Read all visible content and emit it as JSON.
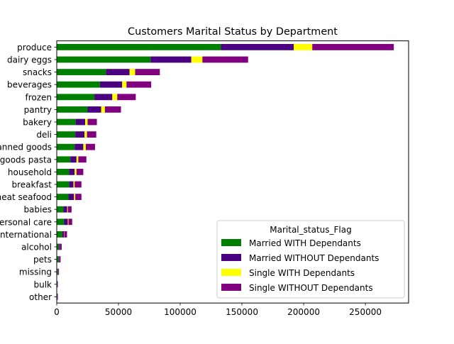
{
  "chart_data": {
    "type": "bar",
    "orientation": "horizontal",
    "stacked": true,
    "title": "Customers Marital Status by Department",
    "xlabel": "",
    "ylabel": "",
    "xlim": [
      0,
      285000
    ],
    "xticks": [
      0,
      50000,
      100000,
      150000,
      200000,
      250000
    ],
    "xtick_labels": [
      "0",
      "50000",
      "100000",
      "150000",
      "200000",
      "250000"
    ],
    "grid": false,
    "legend": {
      "title": "Marital_status_Flag",
      "position": "lower-right"
    },
    "categories": [
      "produce",
      "dairy eggs",
      "snacks",
      "beverages",
      "frozen",
      "pantry",
      "bakery",
      "deli",
      "canned goods",
      "dry goods pasta",
      "household",
      "breakfast",
      "meat seafood",
      "babies",
      "personal care",
      "international",
      "alcohol",
      "pets",
      "missing",
      "bulk",
      "other"
    ],
    "series": [
      {
        "name": "Married WITH Dependants",
        "color": "#008000",
        "values": [
          133000,
          76000,
          40000,
          35000,
          30500,
          25000,
          15500,
          15000,
          14500,
          11000,
          10000,
          10000,
          9500,
          5500,
          6000,
          4500,
          1800,
          1500,
          800,
          400,
          400
        ]
      },
      {
        "name": "Married WITHOUT Dependants",
        "color": "#4B0082",
        "values": [
          59000,
          33000,
          19000,
          18000,
          14500,
          11000,
          7500,
          7500,
          7000,
          5000,
          4500,
          3500,
          4500,
          3000,
          3000,
          1500,
          800,
          500,
          300,
          200,
          200
        ]
      },
      {
        "name": "Single WITH Dependants",
        "color": "#FFFF00",
        "values": [
          15000,
          9000,
          4500,
          3500,
          4000,
          3000,
          2000,
          2000,
          2000,
          1500,
          1500,
          1000,
          1000,
          500,
          500,
          300,
          100,
          100,
          100,
          50,
          50
        ]
      },
      {
        "name": "Single WITHOUT Dependants",
        "color": "#800080",
        "values": [
          66000,
          37000,
          20000,
          20000,
          15000,
          13000,
          7500,
          7500,
          7500,
          6500,
          5500,
          5500,
          5000,
          3000,
          3000,
          2000,
          1300,
          1000,
          600,
          300,
          300
        ]
      }
    ]
  }
}
